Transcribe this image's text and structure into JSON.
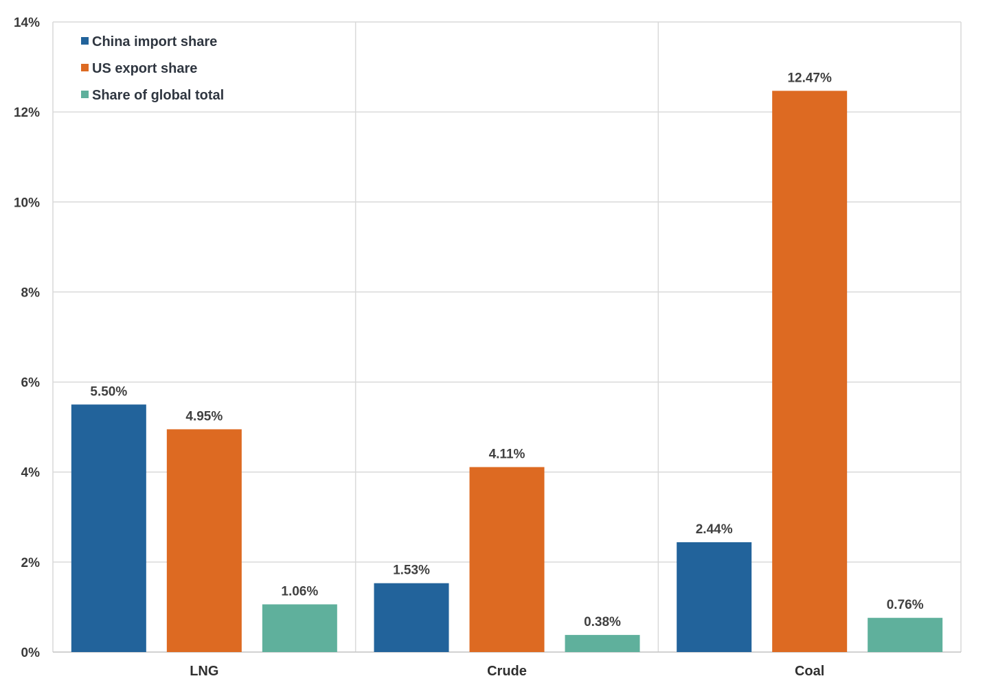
{
  "chart_data": {
    "type": "bar",
    "categories": [
      "LNG",
      "Crude",
      "Coal"
    ],
    "series": [
      {
        "name": "China import share",
        "color": "#22639b",
        "values": [
          5.5,
          1.53,
          2.44
        ],
        "labels": [
          "5.50%",
          "1.53%",
          "2.44%"
        ]
      },
      {
        "name": "US export share",
        "color": "#dd6a22",
        "values": [
          4.95,
          4.11,
          12.47
        ],
        "labels": [
          "4.95%",
          "4.11%",
          "12.47%"
        ]
      },
      {
        "name": "Share of global total",
        "color": "#5fb09c",
        "values": [
          1.06,
          0.38,
          0.76
        ],
        "labels": [
          "1.06%",
          "0.38%",
          "0.76%"
        ]
      }
    ],
    "ylim": [
      0,
      14
    ],
    "yticks": [
      0,
      2,
      4,
      6,
      8,
      10,
      12,
      14
    ],
    "ytick_labels": [
      "0%",
      "2%",
      "4%",
      "6%",
      "8%",
      "10%",
      "12%",
      "14%"
    ],
    "title": "",
    "xlabel": "",
    "ylabel": "",
    "grid": true,
    "legend": "top-left"
  }
}
